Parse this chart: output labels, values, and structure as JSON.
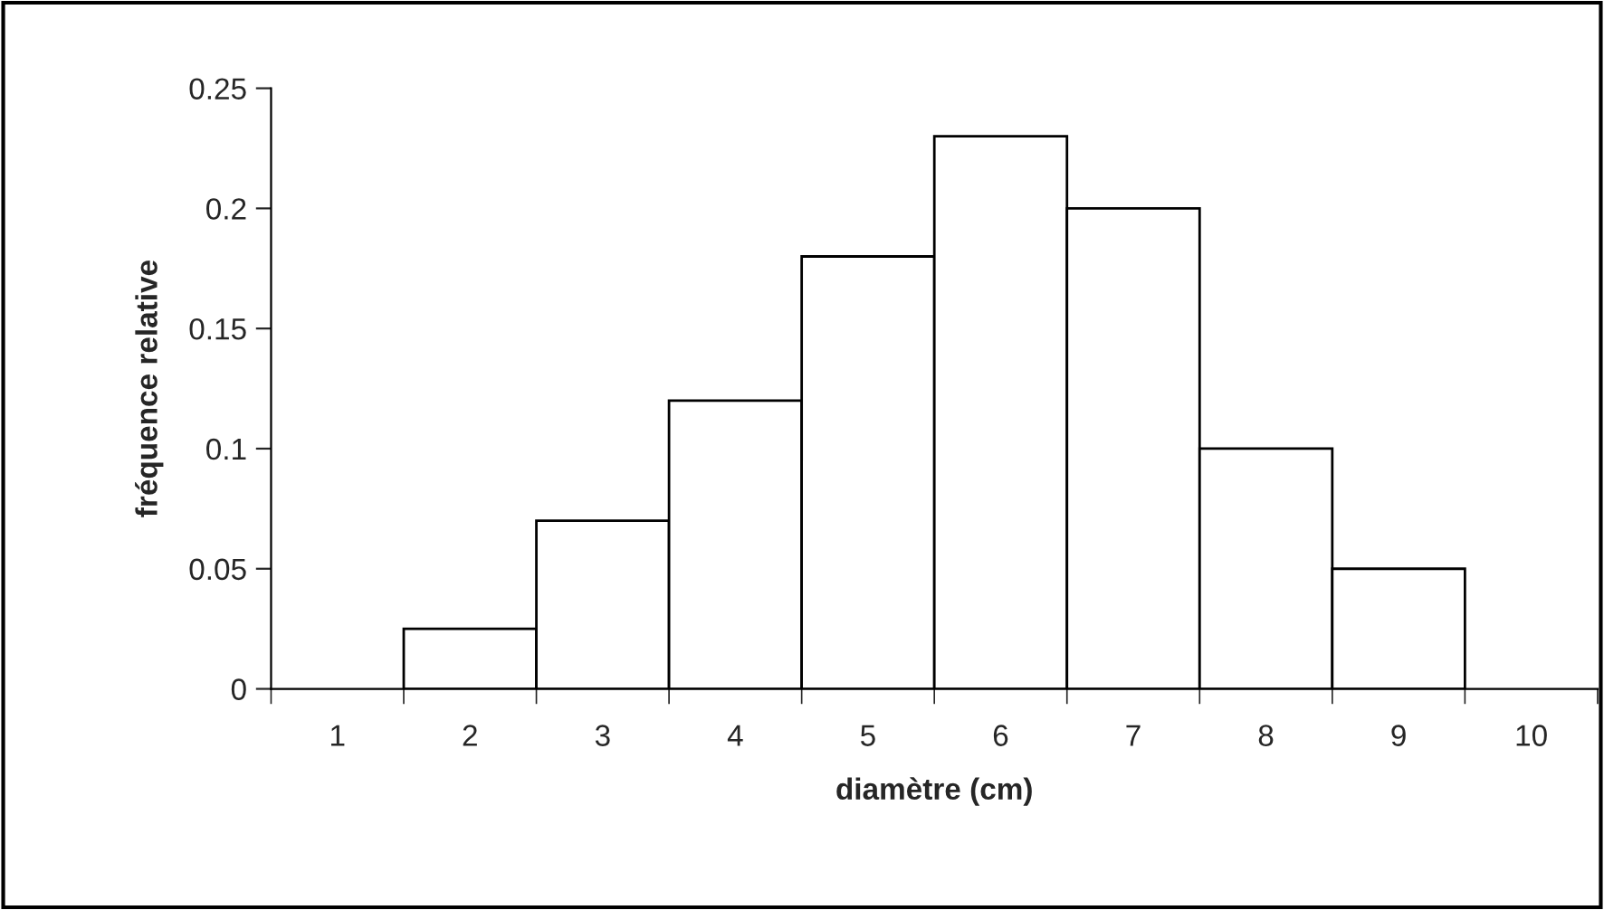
{
  "chart_data": {
    "type": "bar",
    "xlabel": "diamètre (cm)",
    "ylabel": "fréquence relative",
    "categories": [
      "1",
      "2",
      "3",
      "4",
      "5",
      "6",
      "7",
      "8",
      "9",
      "10"
    ],
    "values": [
      0,
      0.025,
      0.07,
      0.12,
      0.18,
      0.23,
      0.2,
      0.1,
      0.05,
      0
    ],
    "color": "#ffffff",
    "ylim": [
      0,
      0.25
    ],
    "yticks": [
      0,
      0.05,
      0.1,
      0.15,
      0.2,
      0.25
    ],
    "grid": false,
    "legend": false
  }
}
